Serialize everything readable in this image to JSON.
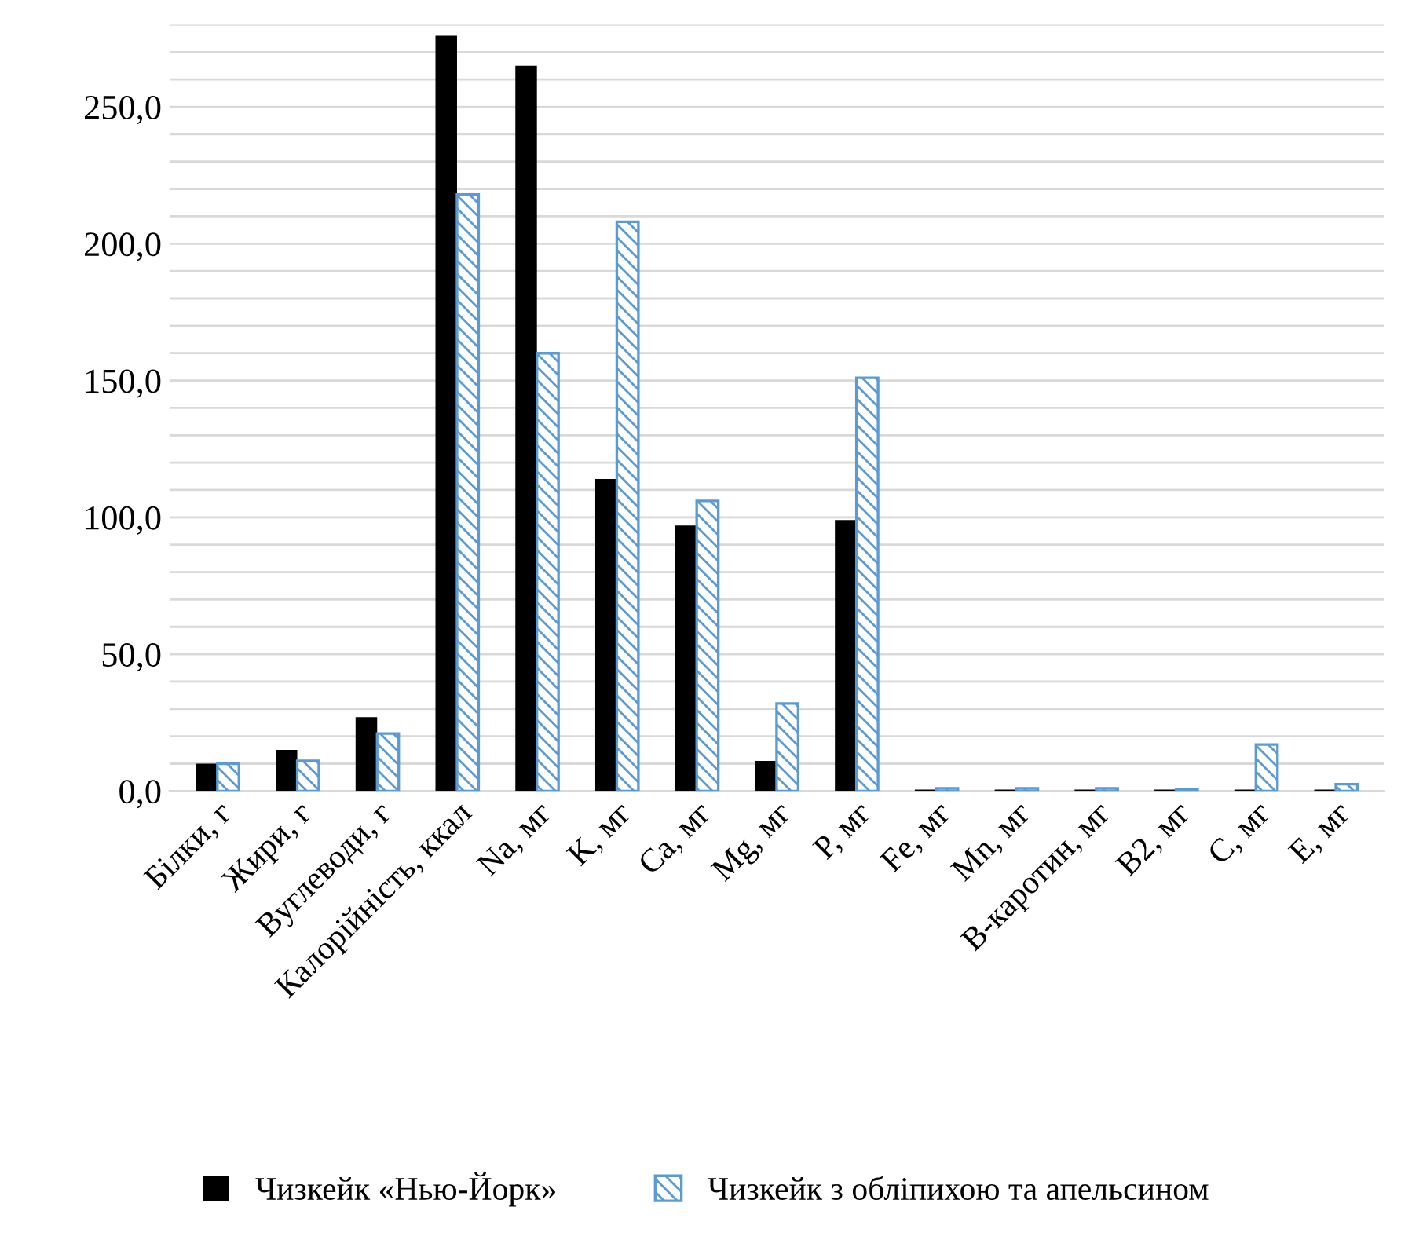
{
  "chart_data": {
    "type": "bar",
    "categories": [
      "Білки, г",
      "Жири, г",
      "Вуглеводи, г",
      "Калорійність, ккал",
      "Na, мг",
      "K, мг",
      "Ca, мг",
      "Mg, мг",
      "P, мг",
      "Fe, мг",
      "Mn, мг",
      "В-каротин, мг",
      "B2, мг",
      "C, мг",
      "E, мг"
    ],
    "series": [
      {
        "name": "Чизкейк «Нью-Йорк»",
        "color": "#000000",
        "values": [
          10,
          15,
          27,
          276,
          265,
          114,
          97,
          11,
          99,
          0.5,
          0.5,
          0.5,
          0.5,
          0.5,
          0.5
        ]
      },
      {
        "name": "Чизкейк з обліпихою та апельсином",
        "color": "#5b9bd5",
        "values": [
          10,
          11,
          21,
          218,
          160,
          208,
          106,
          32,
          151,
          1,
          1,
          1,
          0.5,
          17,
          2.5
        ]
      }
    ],
    "ylim": [
      0,
      280
    ],
    "yticks": [
      {
        "value": 0,
        "label": "0,0"
      },
      {
        "value": 10,
        "label": null
      },
      {
        "value": 20,
        "label": null
      },
      {
        "value": 30,
        "label": null
      },
      {
        "value": 40,
        "label": null
      },
      {
        "value": 50,
        "label": "50,0"
      },
      {
        "value": 60,
        "label": null
      },
      {
        "value": 70,
        "label": null
      },
      {
        "value": 80,
        "label": null
      },
      {
        "value": 90,
        "label": null
      },
      {
        "value": 100,
        "label": "100,0"
      },
      {
        "value": 110,
        "label": null
      },
      {
        "value": 120,
        "label": null
      },
      {
        "value": 130,
        "label": null
      },
      {
        "value": 140,
        "label": null
      },
      {
        "value": 150,
        "label": "150,0"
      },
      {
        "value": 160,
        "label": null
      },
      {
        "value": 170,
        "label": null
      },
      {
        "value": 180,
        "label": null
      },
      {
        "value": 190,
        "label": null
      },
      {
        "value": 200,
        "label": "200,0"
      },
      {
        "value": 210,
        "label": null
      },
      {
        "value": 220,
        "label": null
      },
      {
        "value": 230,
        "label": null
      },
      {
        "value": 240,
        "label": null
      },
      {
        "value": 250,
        "label": "250,0"
      },
      {
        "value": 260,
        "label": null
      },
      {
        "value": 270,
        "label": null
      },
      {
        "value": 280,
        "label": null
      }
    ],
    "grid": "y",
    "legend": "bottom"
  }
}
